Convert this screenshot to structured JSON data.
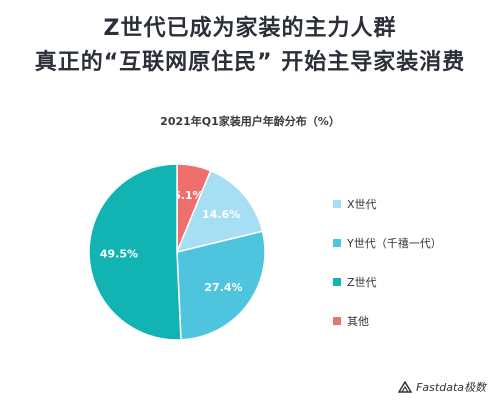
{
  "headline": {
    "line1": "Z世代已成为家装的主力人群",
    "line2": "真正的“互联网原住民” 开始主导家装消费"
  },
  "chart_data": {
    "type": "pie",
    "title": "2021年Q1家装用户年龄分布（%）",
    "slices": [
      {
        "label": "其他",
        "value": 6.1,
        "value_label": "6.1%",
        "color": "#ef6f6c"
      },
      {
        "label": "X世代",
        "value": 14.6,
        "value_label": "14.6%",
        "color": "#a6def3"
      },
      {
        "label": "Y世代（千禧一代）",
        "value": 27.4,
        "value_label": "27.4%",
        "color": "#4fc4de"
      },
      {
        "label": "Z世代",
        "value": 49.5,
        "value_label": "49.5%",
        "color": "#12b3b3"
      }
    ],
    "legend_order": [
      "X世代",
      "Y世代（千禧一代）",
      "Z世代",
      "其他"
    ],
    "legend_position": "right"
  },
  "brand": {
    "logo_icon": "brand-logo-icon",
    "text": "Fastdata极数"
  }
}
